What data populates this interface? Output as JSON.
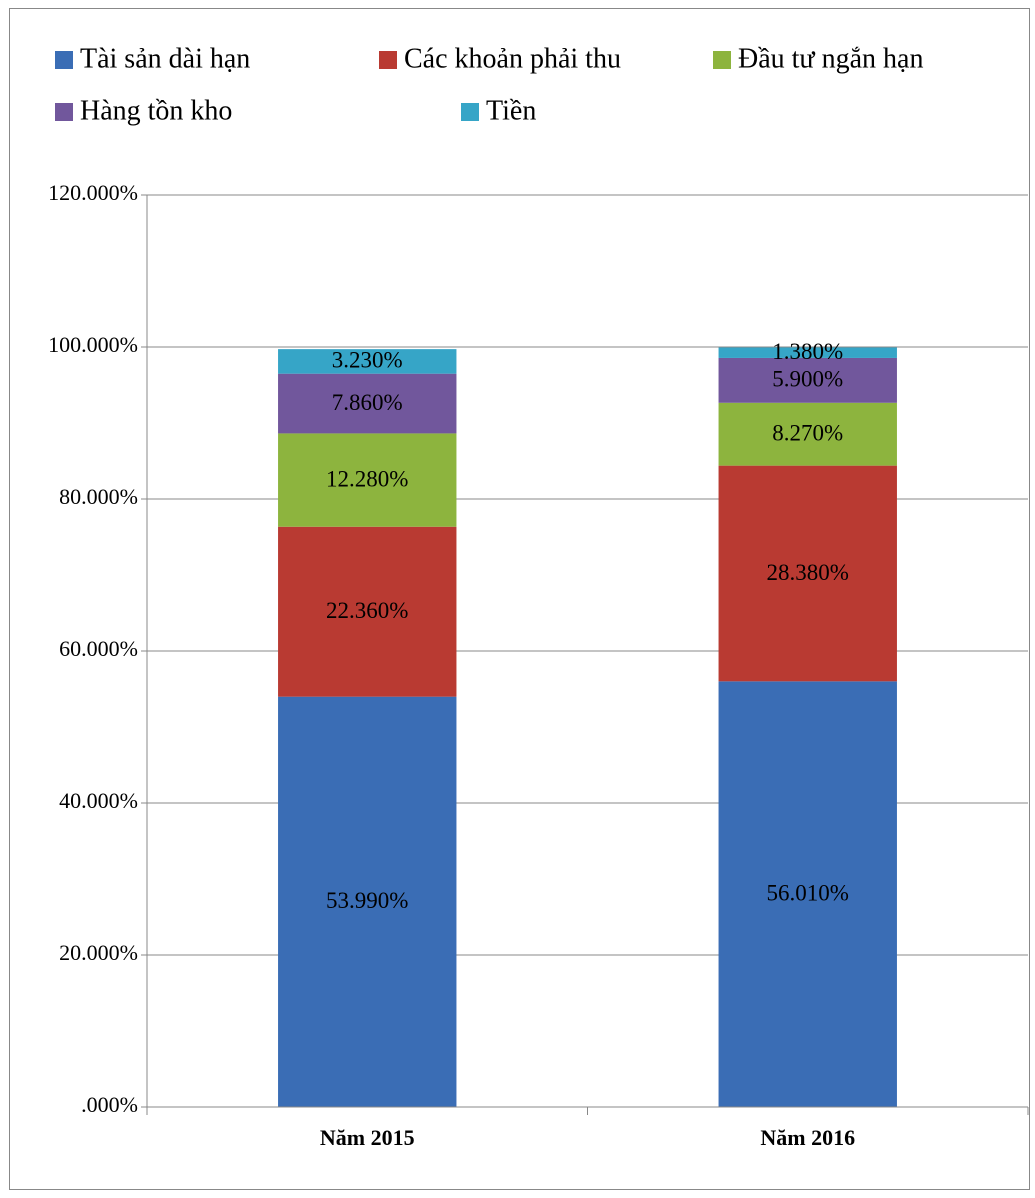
{
  "chart_data": {
    "type": "stacked_bar",
    "categories": [
      "Năm 2015",
      "Năm 2016"
    ],
    "series": [
      {
        "name": "Tài sản dài hạn",
        "color": "#3a6db5",
        "values": [
          53.99,
          56.01
        ],
        "value_labels": [
          "53.990%",
          "56.010%"
        ]
      },
      {
        "name": "Các khoản phải thu",
        "color": "#b93a32",
        "values": [
          22.36,
          28.38
        ],
        "value_labels": [
          "22.360%",
          "28.380%"
        ]
      },
      {
        "name": "Đầu tư ngắn hạn",
        "color": "#8db43e",
        "values": [
          12.28,
          8.27
        ],
        "value_labels": [
          "12.280%",
          "8.270%"
        ]
      },
      {
        "name": "Hàng tồn kho",
        "color": "#71579c",
        "values": [
          7.86,
          5.9
        ],
        "value_labels": [
          "7.860%",
          "5.900%"
        ]
      },
      {
        "name": "Tiền",
        "color": "#36a5c7",
        "values": [
          3.23,
          1.38
        ],
        "value_labels": [
          "3.230%",
          "1.380%"
        ]
      }
    ],
    "ylim": [
      0,
      120
    ],
    "yticks": [
      {
        "value": 0,
        "label": ".000%"
      },
      {
        "value": 20,
        "label": "20.000%"
      },
      {
        "value": 40,
        "label": "40.000%"
      },
      {
        "value": 60,
        "label": "60.000%"
      },
      {
        "value": 80,
        "label": "80.000%"
      },
      {
        "value": 100,
        "label": "100.000%"
      },
      {
        "value": 120,
        "label": "120.000%"
      }
    ],
    "grid": true
  }
}
